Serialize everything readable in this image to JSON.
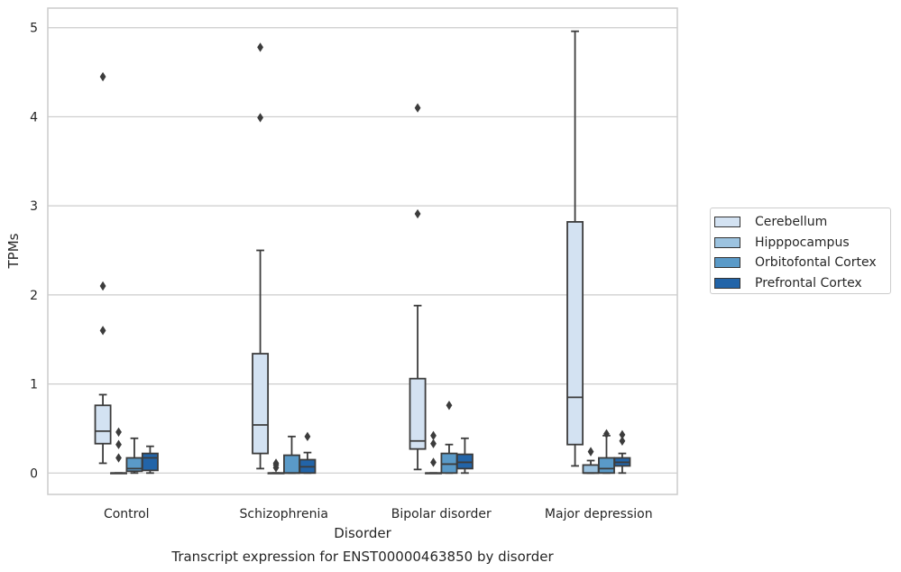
{
  "chart_data": {
    "type": "box",
    "title": "Transcript expression for ENST00000463850 by disorder",
    "xlabel": "Disorder",
    "ylabel": "TPMs",
    "ylim": [
      -0.24,
      5.22
    ],
    "yticks": [
      0,
      1,
      2,
      3,
      4,
      5
    ],
    "grid": true,
    "legend_position": "right",
    "categories": [
      "Control",
      "Schizophrenia",
      "Bipolar disorder",
      "Major depression"
    ],
    "series": [
      {
        "name": "Cerebellum",
        "color": "#d3e2f2",
        "boxes": [
          {
            "whislo": 0.11,
            "q1": 0.33,
            "med": 0.47,
            "q3": 0.76,
            "whishi": 0.88,
            "fliers": [
              1.6,
              2.1,
              4.45
            ]
          },
          {
            "whislo": 0.05,
            "q1": 0.22,
            "med": 0.54,
            "q3": 1.34,
            "whishi": 2.5,
            "fliers": [
              3.99,
              4.78
            ]
          },
          {
            "whislo": 0.04,
            "q1": 0.27,
            "med": 0.36,
            "q3": 1.06,
            "whishi": 1.88,
            "fliers": [
              2.91,
              4.1
            ]
          },
          {
            "whislo": 0.08,
            "q1": 0.32,
            "med": 0.85,
            "q3": 2.82,
            "whishi": 4.96,
            "fliers": []
          }
        ]
      },
      {
        "name": "Hipppocampus",
        "color": "#9cc3e0",
        "boxes": [
          {
            "whislo": 0.0,
            "q1": 0.0,
            "med": 0.0,
            "q3": 0.0,
            "whishi": 0.0,
            "fliers": [
              0.17,
              0.32,
              0.46
            ]
          },
          {
            "whislo": 0.0,
            "q1": 0.0,
            "med": 0.0,
            "q3": 0.0,
            "whishi": 0.0,
            "fliers": [
              0.06,
              0.09,
              0.11
            ]
          },
          {
            "whislo": 0.0,
            "q1": 0.0,
            "med": 0.0,
            "q3": 0.0,
            "whishi": 0.0,
            "fliers": [
              0.12,
              0.33,
              0.42
            ]
          },
          {
            "whislo": 0.0,
            "q1": 0.0,
            "med": 0.0,
            "q3": 0.09,
            "whishi": 0.14,
            "fliers": [
              0.24
            ]
          }
        ]
      },
      {
        "name": "Orbitofontal Cortex",
        "color": "#5a9ac8",
        "boxes": [
          {
            "whislo": 0.0,
            "q1": 0.02,
            "med": 0.05,
            "q3": 0.17,
            "whishi": 0.39,
            "fliers": []
          },
          {
            "whislo": 0.0,
            "q1": 0.0,
            "med": 0.0,
            "q3": 0.2,
            "whishi": 0.41,
            "fliers": []
          },
          {
            "whislo": 0.0,
            "q1": 0.0,
            "med": 0.1,
            "q3": 0.22,
            "whishi": 0.32,
            "fliers": [
              0.76
            ]
          },
          {
            "whislo": 0.0,
            "q1": 0.0,
            "med": 0.05,
            "q3": 0.17,
            "whishi": 0.42,
            "fliers": [
              0.44
            ]
          }
        ]
      },
      {
        "name": "Prefrontal Cortex",
        "color": "#2264a8",
        "boxes": [
          {
            "whislo": 0.0,
            "q1": 0.03,
            "med": 0.17,
            "q3": 0.22,
            "whishi": 0.3,
            "fliers": []
          },
          {
            "whislo": 0.0,
            "q1": 0.0,
            "med": 0.07,
            "q3": 0.15,
            "whishi": 0.23,
            "fliers": [
              0.41
            ]
          },
          {
            "whislo": 0.0,
            "q1": 0.05,
            "med": 0.12,
            "q3": 0.21,
            "whishi": 0.39,
            "fliers": []
          },
          {
            "whislo": 0.0,
            "q1": 0.08,
            "med": 0.12,
            "q3": 0.17,
            "whishi": 0.22,
            "fliers": [
              0.36,
              0.43
            ]
          }
        ]
      }
    ]
  }
}
